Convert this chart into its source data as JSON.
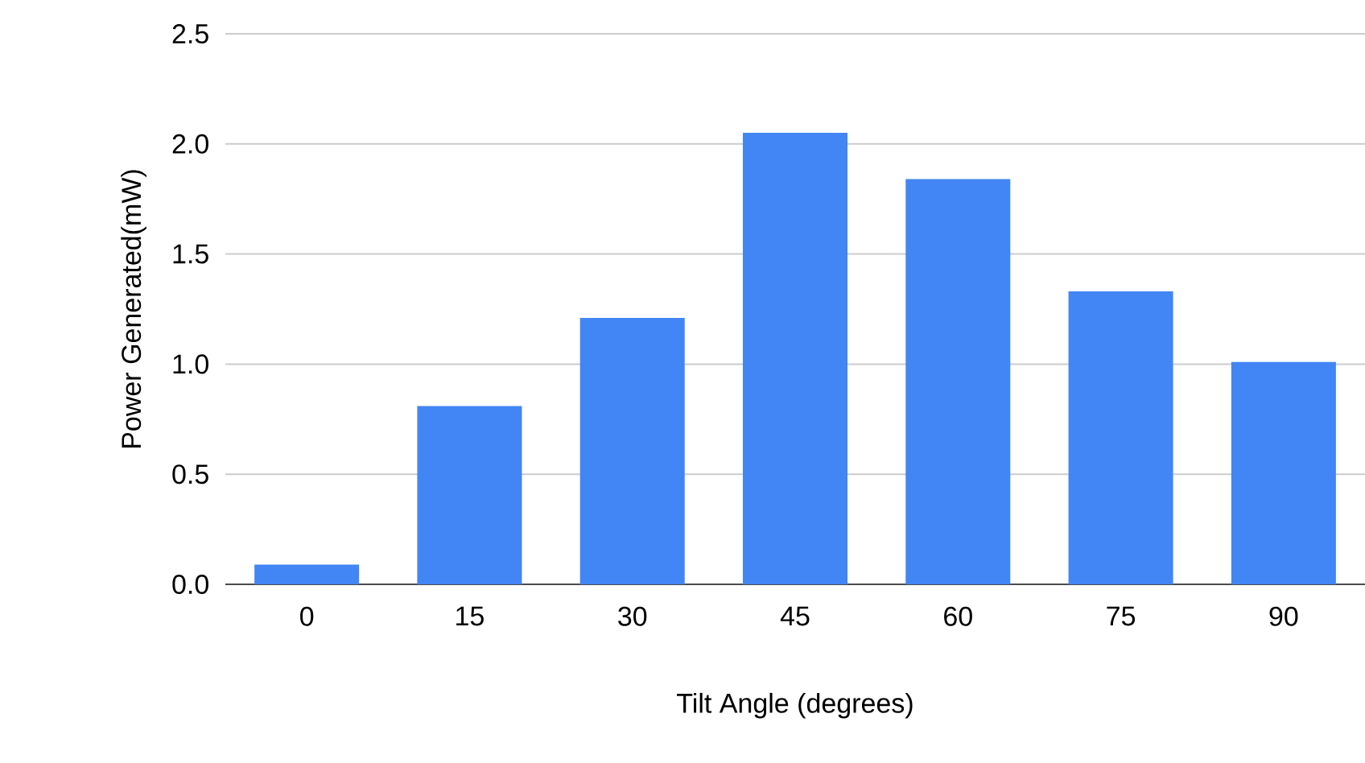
{
  "chart_data": {
    "type": "bar",
    "xlabel": "Tilt Angle (degrees)",
    "ylabel": "Power Generated(mW)",
    "categories": [
      "0",
      "15",
      "30",
      "45",
      "60",
      "75",
      "90"
    ],
    "values": [
      0.09,
      0.81,
      1.21,
      2.05,
      1.84,
      1.33,
      1.01
    ],
    "color": "#4285f4",
    "ylim": [
      0,
      2.5
    ],
    "yticks": [
      {
        "value": 0,
        "label": "0.0"
      },
      {
        "value": 0.5,
        "label": "0.5"
      },
      {
        "value": 1,
        "label": "1.0"
      },
      {
        "value": 1.5,
        "label": "1.5"
      },
      {
        "value": 2,
        "label": "2.0"
      },
      {
        "value": 2.5,
        "label": "2.5"
      }
    ],
    "grid": "y"
  }
}
